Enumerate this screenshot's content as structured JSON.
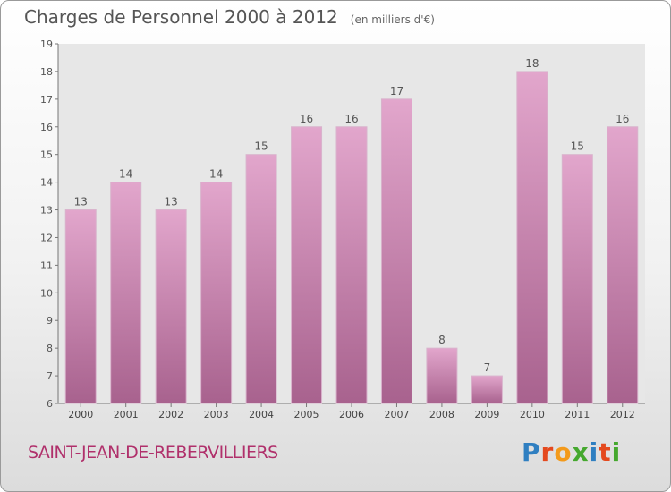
{
  "header": {
    "title": "Charges de Personnel 2000 à 2012",
    "subtitle": "(en milliers d'€)"
  },
  "footer": {
    "city": "SAINT-JEAN-DE-REBERVILLIERS",
    "logo": "Proxiti"
  },
  "colors": {
    "bar_top": "#e2a6cc",
    "bar_bottom": "#a8628e",
    "city_text": "#b0306b",
    "plot_bg": "#e7e7e7"
  },
  "chart_data": {
    "type": "bar",
    "title": "Charges de Personnel 2000 à 2012",
    "subtitle": "(en milliers d'€)",
    "categories": [
      "2000",
      "2001",
      "2002",
      "2003",
      "2004",
      "2005",
      "2006",
      "2007",
      "2008",
      "2009",
      "2010",
      "2011",
      "2012"
    ],
    "values": [
      13,
      14,
      13,
      14,
      15,
      16,
      16,
      17,
      8,
      7,
      18,
      15,
      16
    ],
    "ylim": [
      6,
      19
    ],
    "yticks": [
      6,
      7,
      8,
      9,
      10,
      11,
      12,
      13,
      14,
      15,
      16,
      17,
      18,
      19
    ],
    "grid": false,
    "legend": "none"
  }
}
